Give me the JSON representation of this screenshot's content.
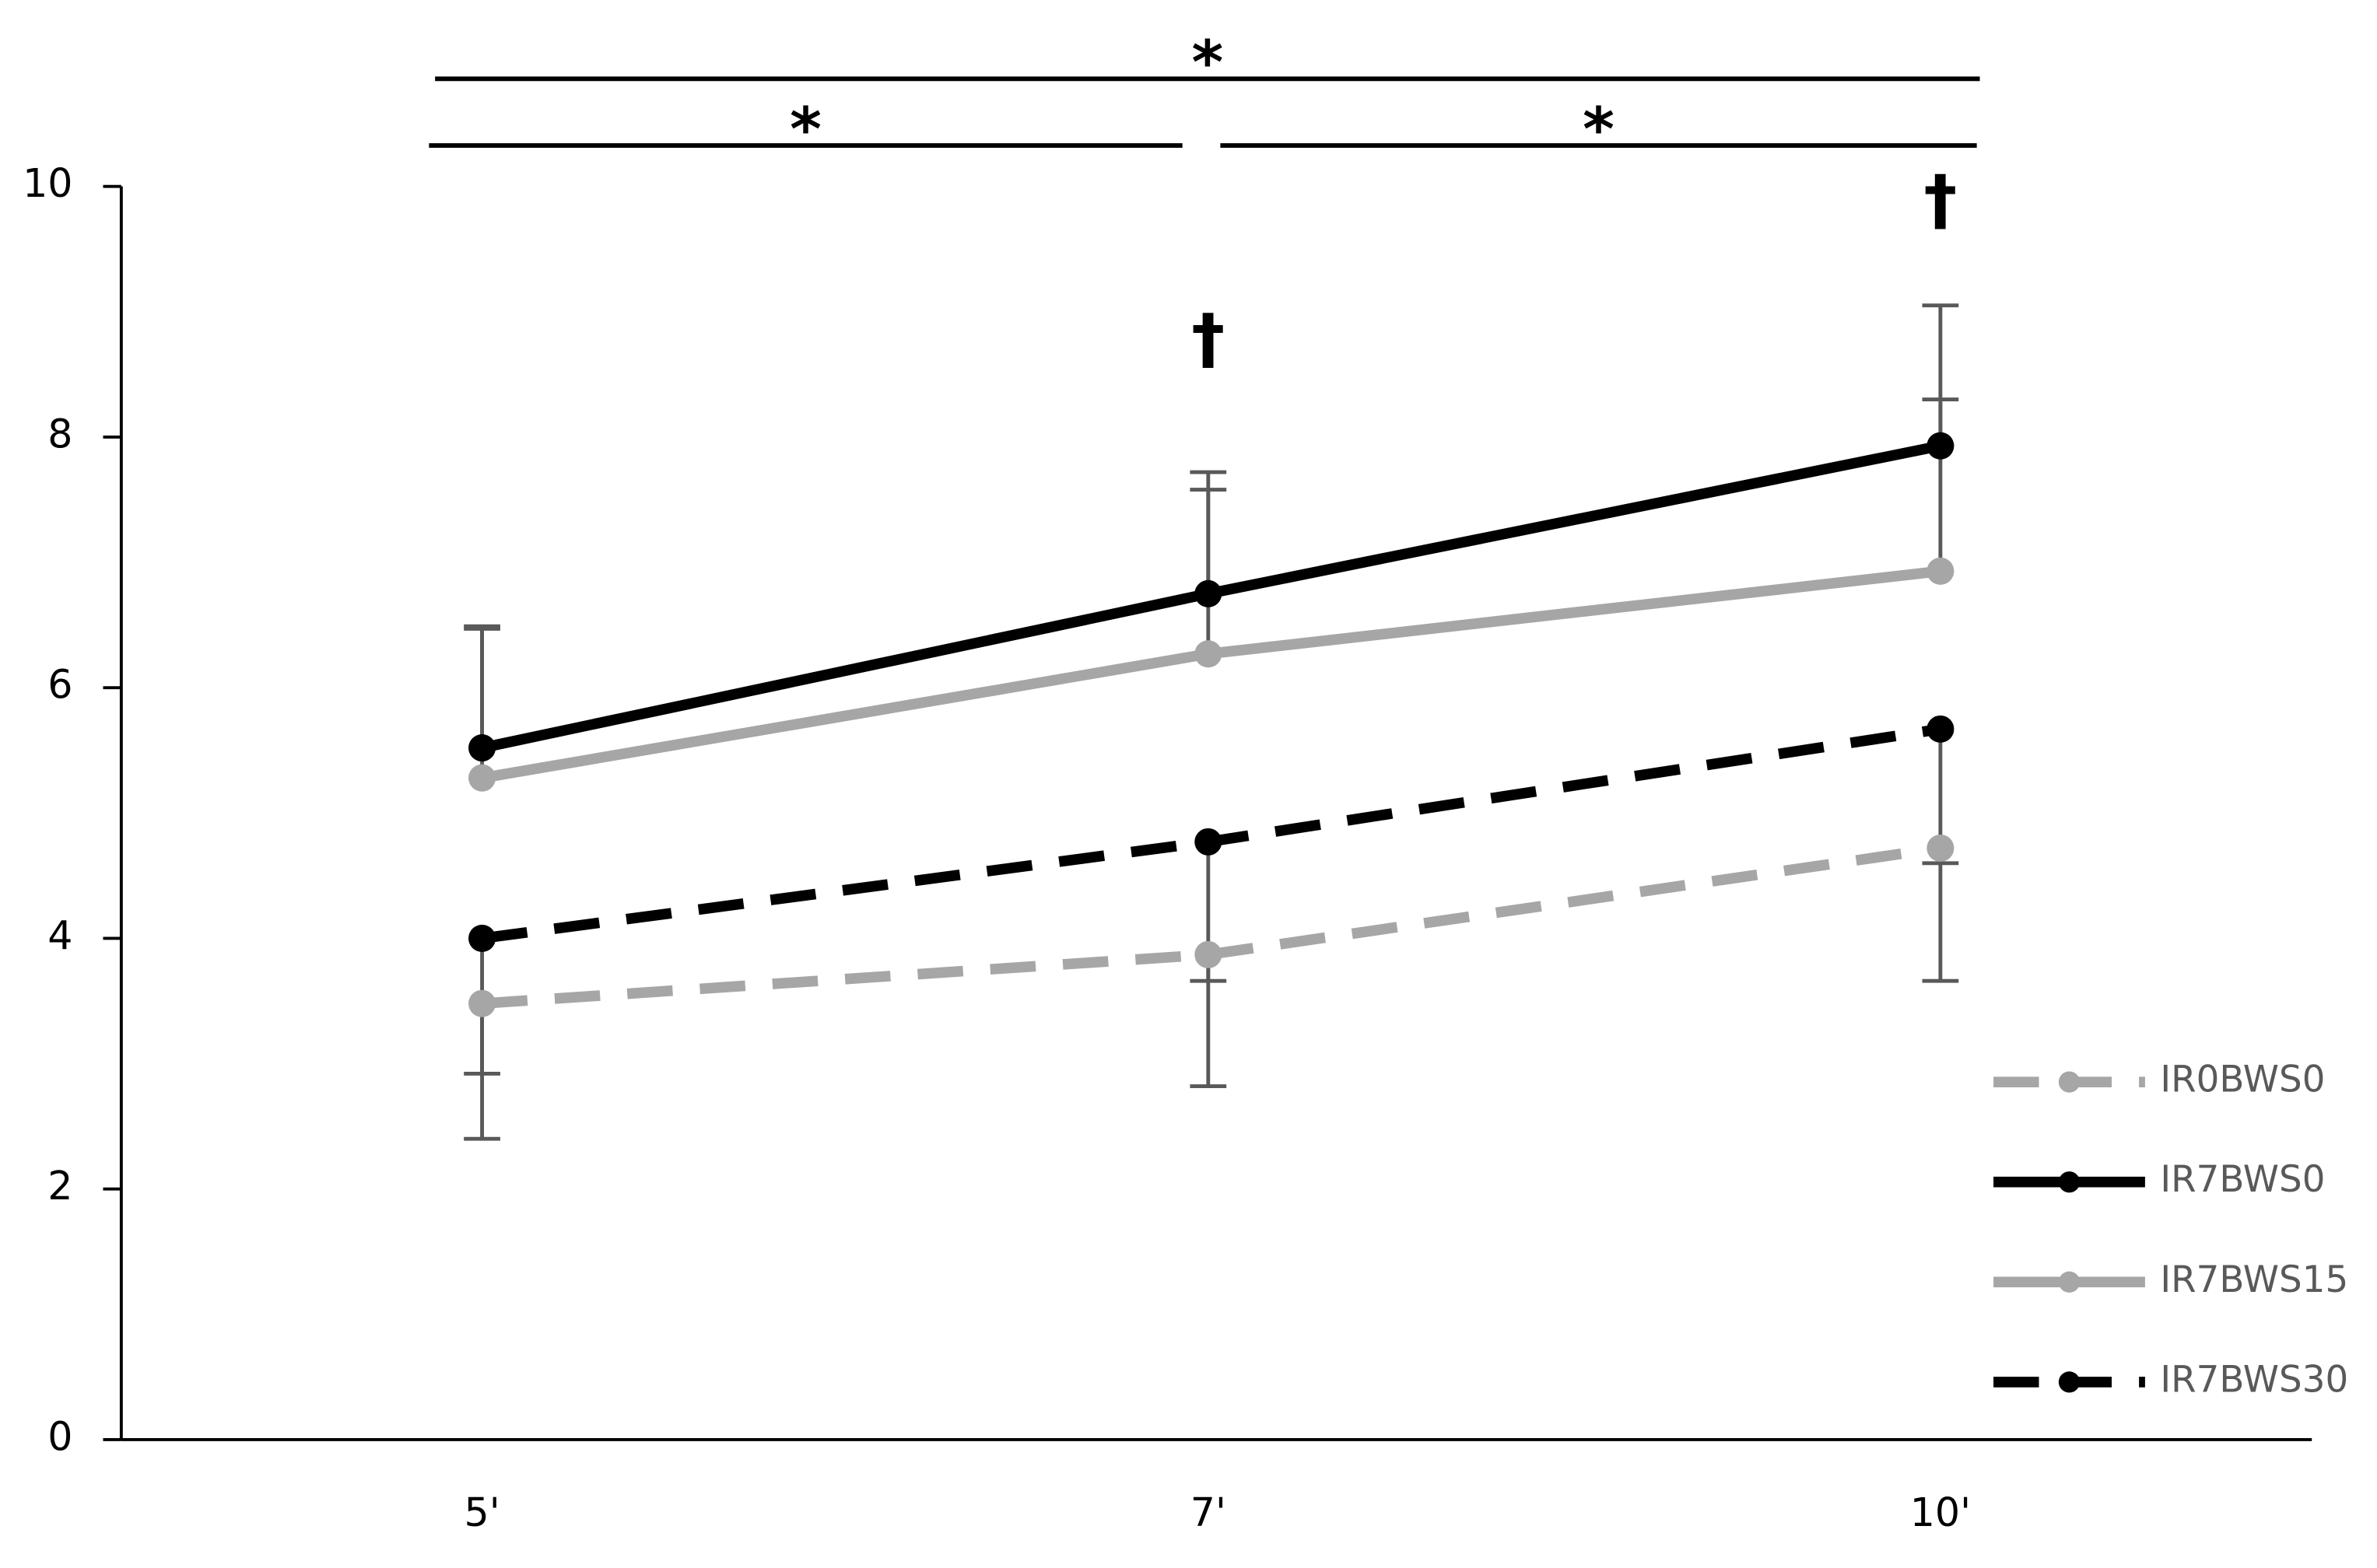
{
  "chart_data": {
    "type": "line",
    "categories": [
      "5'",
      "7'",
      "10'"
    ],
    "series": [
      {
        "name": "IR0BWS0",
        "color": "#a6a6a6",
        "dashed": true,
        "values": [
          3.48,
          3.87,
          4.72
        ],
        "errors": [
          1.08,
          1.05,
          1.06
        ],
        "error_direction": "down"
      },
      {
        "name": "IR7BWS0",
        "color": "#000000",
        "dashed": false,
        "values": [
          5.52,
          6.75,
          7.93
        ],
        "errors": [
          0.97,
          0.97,
          1.12
        ],
        "error_direction": "up"
      },
      {
        "name": "IR7BWS15",
        "color": "#a6a6a6",
        "dashed": false,
        "values": [
          5.28,
          6.27,
          6.93
        ],
        "errors": [
          1.19,
          1.31,
          1.37
        ],
        "error_direction": "up"
      },
      {
        "name": "IR7BWS30",
        "color": "#000000",
        "dashed": true,
        "values": [
          4.0,
          4.77,
          5.67
        ],
        "errors": [
          1.08,
          1.11,
          1.07
        ],
        "error_direction": "down"
      }
    ],
    "ylim": [
      0,
      10
    ],
    "yticks": [
      0,
      2,
      4,
      6,
      8,
      10
    ],
    "legend": "bottom-right",
    "significance": [
      {
        "label": "*",
        "from": "5'",
        "to": "10'"
      },
      {
        "label": "*",
        "from": "5'",
        "to": "7'"
      },
      {
        "label": "*",
        "from": "7'",
        "to": "10'"
      }
    ],
    "daggers": [
      {
        "label": "†",
        "at": "7'"
      },
      {
        "label": "†",
        "at": "10'"
      }
    ]
  }
}
